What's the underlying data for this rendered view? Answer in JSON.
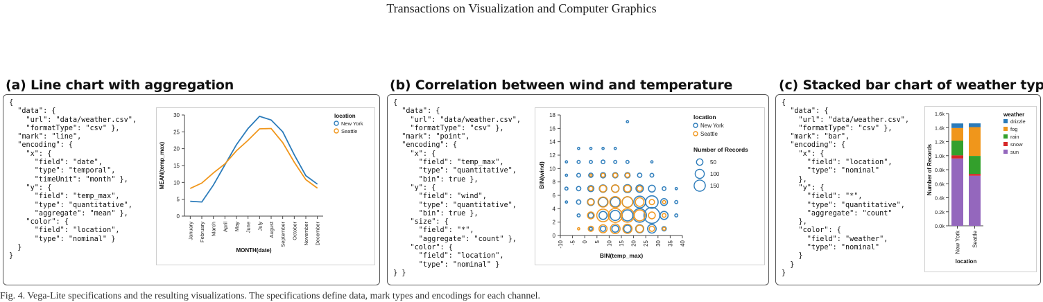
{
  "header": {
    "running_title": "Transactions on Visualization and Computer Graphics"
  },
  "colors": {
    "new_york": "#2b7bba",
    "seattle": "#f0961b",
    "drizzle": "#2b7bba",
    "fog": "#f0961b",
    "rain": "#33a02c",
    "snow": "#d62728",
    "sun": "#9467bd"
  },
  "panels": [
    {
      "title": "(a) Line chart with aggregation",
      "code": "{\n  \"data\": {\n    \"url\": \"data/weather.csv\",\n    \"formatType\": \"csv\" },\n  \"mark\": \"line\",\n  \"encoding\": {\n    \"x\": {\n      \"field\": \"date\",\n      \"type\": \"temporal\",\n      \"timeUnit\": \"month\" },\n    \"y\": {\n      \"field\": \"temp_max\",\n      \"type\": \"quantitative\",\n      \"aggregate\": \"mean\" },\n    \"color\": {\n      \"field\": \"location\",\n      \"type\": \"nominal\" }\n  }\n}"
    },
    {
      "title": "(b) Correlation between wind and temperature",
      "code": "{\n  \"data\": {\n    \"url\": \"data/weather.csv\",\n    \"formatType\": \"csv\" },\n  \"mark\": \"point\",\n  \"encoding\": {\n    \"x\": {\n      \"field\": \"temp_max\",\n      \"type\": \"quantitative\",\n      \"bin\": true },\n    \"y\": {\n      \"field\": \"wind\",\n      \"type\": \"quantitative\",\n      \"bin\": true },\n    \"size\": {\n      \"field\": \"*\",\n      \"aggregate\": \"count\" },\n    \"color\": {\n      \"field\": \"location\",\n      \"type\": \"nominal\" }\n} }"
    },
    {
      "title": "(c) Stacked bar chart of weather types",
      "code": "{\n  \"data\": {\n    \"url\": \"data/weather.csv\",\n    \"formatType\": \"csv\" },\n  \"mark\": \"bar\",\n  \"encoding\": {\n    \"x\": {\n      \"field\": \"location\",\n      \"type\": \"nominal\"\n    },\n    \"y\": {\n      \"field\": \"*\",\n      \"type\": \"quantitative\",\n      \"aggregate\": \"count\"\n    },\n    \"color\": {\n      \"field\": \"weather\",\n      \"type\": \"nominal\"\n    }\n  }\n}"
    }
  ],
  "caption": "Fig. 4. Vega-Lite specifications and the resulting visualizations. The specifications define data, mark types and encodings for each channel.",
  "chart_data": [
    {
      "type": "line",
      "xlabel": "MONTH(date)",
      "ylabel": "MEAN(temp_max)",
      "categories": [
        "January",
        "February",
        "March",
        "April",
        "May",
        "June",
        "July",
        "August",
        "September",
        "October",
        "November",
        "December"
      ],
      "ylim": [
        0,
        30
      ],
      "yticks": [
        "0",
        "5",
        "10",
        "15",
        "20",
        "25",
        "30"
      ],
      "legend_title": "location",
      "legend_position": "top-right",
      "series": [
        {
          "name": "New York",
          "values": [
            4.4,
            4.2,
            9.2,
            15.2,
            21.2,
            26.0,
            29.6,
            28.5,
            25.0,
            18.2,
            12.0,
            9.5
          ]
        },
        {
          "name": "Seattle",
          "values": [
            8.2,
            9.8,
            12.8,
            15.5,
            19.4,
            22.5,
            25.9,
            26.0,
            21.8,
            16.0,
            10.8,
            8.3
          ]
        }
      ]
    },
    {
      "type": "scatter",
      "xlabel": "BIN(temp_max)",
      "ylabel": "BIN(wind)",
      "xlim": [
        -10,
        40
      ],
      "ylim": [
        0,
        18
      ],
      "xticks": [
        "-10",
        "-5",
        "0",
        "5",
        "10",
        "15",
        "20",
        "25",
        "30",
        "35",
        "40"
      ],
      "yticks": [
        "0",
        "2",
        "4",
        "6",
        "8",
        "10",
        "12",
        "14",
        "16",
        "18"
      ],
      "legend_title": "location",
      "size_legend_title": "Number of Records",
      "size_legend": [
        "50",
        "100",
        "150"
      ],
      "legend_position": "top-right",
      "series": [
        {
          "name": "New York",
          "points": [
            [
              -7.5,
              11,
              1
            ],
            [
              -7.5,
              9,
              1
            ],
            [
              -7.5,
              7,
              2
            ],
            [
              -7.5,
              5,
              1
            ],
            [
              -2.5,
              13,
              1
            ],
            [
              -2.5,
              11,
              2
            ],
            [
              -2.5,
              9,
              3
            ],
            [
              -2.5,
              7,
              4
            ],
            [
              -2.5,
              5,
              4
            ],
            [
              -2.5,
              3,
              2
            ],
            [
              2.5,
              13,
              1
            ],
            [
              2.5,
              11,
              2
            ],
            [
              2.5,
              9,
              4
            ],
            [
              2.5,
              7,
              8
            ],
            [
              2.5,
              5,
              10
            ],
            [
              2.5,
              3,
              6
            ],
            [
              2.5,
              1,
              2
            ],
            [
              7.5,
              13,
              1
            ],
            [
              7.5,
              11,
              3
            ],
            [
              7.5,
              9,
              6
            ],
            [
              7.5,
              7,
              12
            ],
            [
              7.5,
              5,
              18
            ],
            [
              7.5,
              3,
              14
            ],
            [
              7.5,
              1,
              6
            ],
            [
              12.5,
              13,
              1
            ],
            [
              12.5,
              11,
              2
            ],
            [
              12.5,
              9,
              6
            ],
            [
              12.5,
              7,
              12
            ],
            [
              12.5,
              5,
              20
            ],
            [
              12.5,
              3,
              22
            ],
            [
              12.5,
              1,
              10
            ],
            [
              17.5,
              17,
              1
            ],
            [
              17.5,
              11,
              2
            ],
            [
              17.5,
              9,
              6
            ],
            [
              17.5,
              7,
              14
            ],
            [
              17.5,
              5,
              24
            ],
            [
              17.5,
              3,
              26
            ],
            [
              17.5,
              1,
              12
            ],
            [
              22.5,
              9,
              4
            ],
            [
              22.5,
              7,
              12
            ],
            [
              22.5,
              5,
              30
            ],
            [
              22.5,
              3,
              40
            ],
            [
              22.5,
              1,
              14
            ],
            [
              27.5,
              11,
              1
            ],
            [
              27.5,
              9,
              3
            ],
            [
              27.5,
              7,
              10
            ],
            [
              27.5,
              5,
              34
            ],
            [
              27.5,
              3,
              54
            ],
            [
              27.5,
              1,
              16
            ],
            [
              32.5,
              7,
              3
            ],
            [
              32.5,
              5,
              10
            ],
            [
              32.5,
              3,
              14
            ],
            [
              32.5,
              1,
              4
            ],
            [
              37.5,
              7,
              1
            ],
            [
              37.5,
              5,
              2
            ],
            [
              37.5,
              3,
              2
            ]
          ]
        },
        {
          "name": "Seattle",
          "points": [
            [
              2.5,
              9,
              1
            ],
            [
              2.5,
              7,
              4
            ],
            [
              2.5,
              5,
              8
            ],
            [
              2.5,
              3,
              10
            ],
            [
              2.5,
              1,
              6
            ],
            [
              7.5,
              9,
              3
            ],
            [
              7.5,
              7,
              10
            ],
            [
              7.5,
              5,
              22
            ],
            [
              7.5,
              3,
              34
            ],
            [
              7.5,
              1,
              14
            ],
            [
              12.5,
              9,
              4
            ],
            [
              12.5,
              7,
              12
            ],
            [
              12.5,
              5,
              26
            ],
            [
              12.5,
              3,
              42
            ],
            [
              12.5,
              1,
              20
            ],
            [
              17.5,
              9,
              4
            ],
            [
              17.5,
              7,
              10
            ],
            [
              17.5,
              5,
              24
            ],
            [
              17.5,
              3,
              40
            ],
            [
              17.5,
              1,
              18
            ],
            [
              22.5,
              7,
              6
            ],
            [
              22.5,
              5,
              16
            ],
            [
              22.5,
              3,
              26
            ],
            [
              22.5,
              1,
              12
            ],
            [
              27.5,
              5,
              6
            ],
            [
              27.5,
              3,
              10
            ],
            [
              27.5,
              1,
              6
            ],
            [
              32.5,
              5,
              2
            ],
            [
              32.5,
              3,
              3
            ],
            [
              32.5,
              1,
              2
            ],
            [
              -2.5,
              1,
              1
            ]
          ]
        }
      ]
    },
    {
      "type": "bar",
      "xlabel": "location",
      "ylabel": "Number of Records",
      "categories": [
        "New York",
        "Seattle"
      ],
      "ylim": [
        0,
        1600
      ],
      "yticks": [
        "0.0k",
        "0.2k",
        "0.4k",
        "0.6k",
        "0.8k",
        "1.0k",
        "1.2k",
        "1.4k",
        "1.6k"
      ],
      "legend_title": "weather",
      "legend_position": "top-right",
      "stacked": true,
      "series": [
        {
          "name": "sun",
          "values": [
            960,
            714
          ]
        },
        {
          "name": "snow",
          "values": [
            45,
            26
          ]
        },
        {
          "name": "rain",
          "values": [
            210,
            257
          ]
        },
        {
          "name": "fog",
          "values": [
            180,
            411
          ]
        },
        {
          "name": "drizzle",
          "values": [
            65,
            53
          ]
        }
      ],
      "legend_order": [
        "drizzle",
        "fog",
        "rain",
        "snow",
        "sun"
      ]
    }
  ]
}
